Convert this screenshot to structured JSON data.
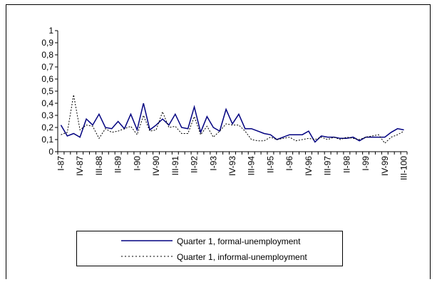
{
  "chart_data": {
    "type": "line",
    "title": "",
    "xlabel": "",
    "ylabel": "",
    "ylim": [
      0,
      1
    ],
    "yticks": [
      "0",
      "0,1",
      "0,2",
      "0,3",
      "0,4",
      "0,5",
      "0,6",
      "0,7",
      "0,8",
      "0,9",
      "1"
    ],
    "xtick_labels": [
      "I-87",
      "IV-87",
      "III-88",
      "II-89",
      "I-90",
      "IV-90",
      "III-91",
      "II-92",
      "I-93",
      "IV-93",
      "III-94",
      "II-95",
      "I-96",
      "IV-96",
      "III-97",
      "II-98",
      "I-99",
      "IV-99",
      "III-100"
    ],
    "legend_position": "bottom",
    "series": [
      {
        "name": "Quarter 1, formal-unemployment",
        "style": "solid",
        "color": "#000080",
        "values": [
          0.22,
          0.13,
          0.15,
          0.12,
          0.27,
          0.22,
          0.31,
          0.2,
          0.19,
          0.25,
          0.19,
          0.31,
          0.18,
          0.4,
          0.18,
          0.22,
          0.27,
          0.22,
          0.31,
          0.2,
          0.19,
          0.37,
          0.16,
          0.29,
          0.2,
          0.17,
          0.35,
          0.23,
          0.31,
          0.19,
          0.19,
          0.17,
          0.15,
          0.14,
          0.1,
          0.12,
          0.14,
          0.14,
          0.14,
          0.17,
          0.08,
          0.13,
          0.12,
          0.12,
          0.11,
          0.11,
          0.12,
          0.09,
          0.12,
          0.12,
          0.12,
          0.12,
          0.16,
          0.19,
          0.18
        ]
      },
      {
        "name": "Quarter 1, informal-unemployment",
        "style": "dotted",
        "color": "#000000",
        "values": [
          0.14,
          0.16,
          0.47,
          0.18,
          0.22,
          0.21,
          0.11,
          0.19,
          0.16,
          0.17,
          0.19,
          0.21,
          0.14,
          0.3,
          0.17,
          0.18,
          0.33,
          0.2,
          0.21,
          0.15,
          0.15,
          0.29,
          0.14,
          0.21,
          0.12,
          0.17,
          0.23,
          0.22,
          0.22,
          0.17,
          0.1,
          0.09,
          0.09,
          0.12,
          0.1,
          0.11,
          0.12,
          0.09,
          0.1,
          0.11,
          0.1,
          0.12,
          0.1,
          0.12,
          0.1,
          0.12,
          0.11,
          0.1,
          0.12,
          0.13,
          0.14,
          0.07,
          0.12,
          0.14,
          0.17
        ]
      }
    ]
  }
}
